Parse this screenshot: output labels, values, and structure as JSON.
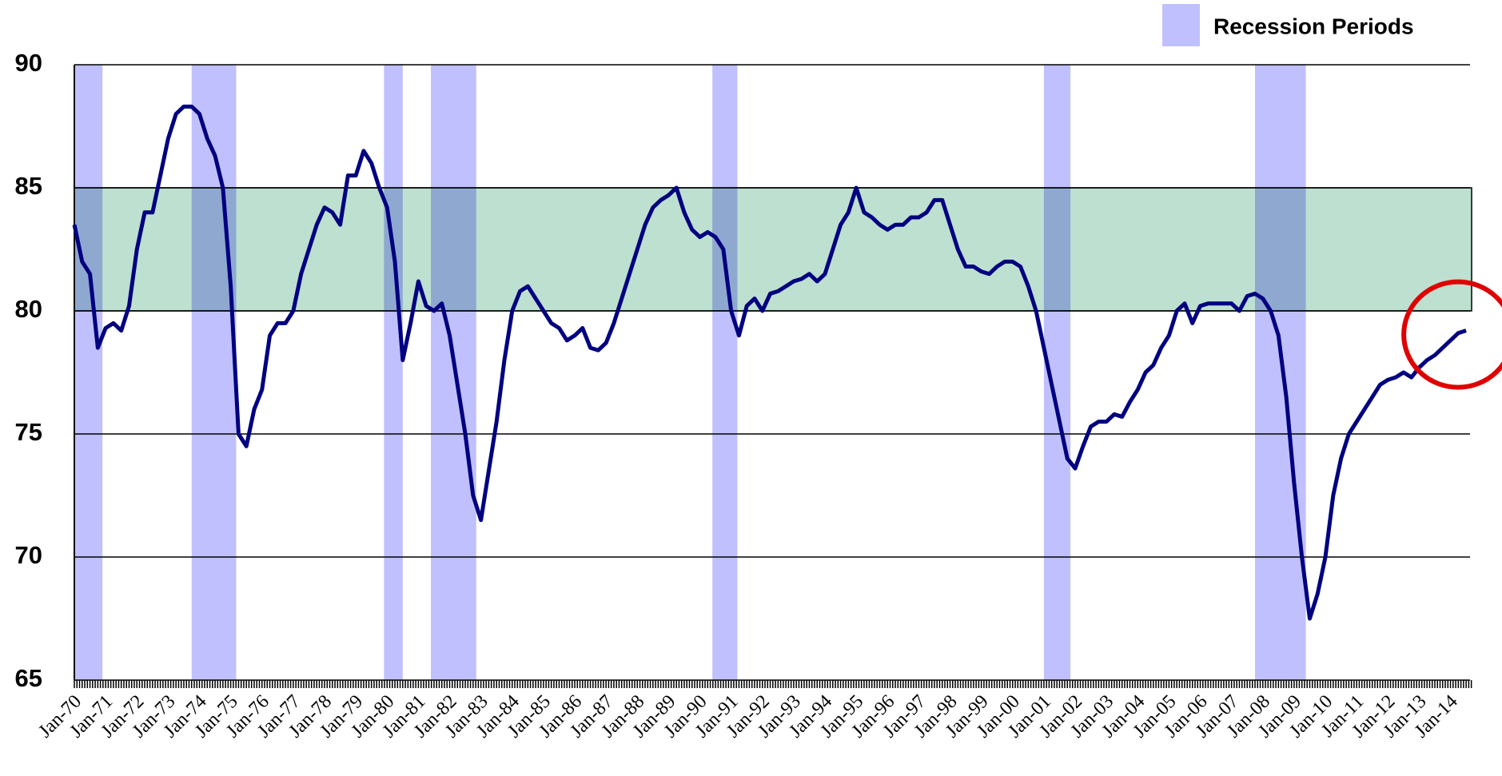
{
  "chart_data": {
    "type": "line",
    "categories": [
      "Jan-70",
      null,
      null,
      null,
      "Jan-71",
      null,
      null,
      null,
      "Jan-72",
      null,
      null,
      null,
      "Jan-73",
      null,
      null,
      null,
      "Jan-74",
      null,
      null,
      null,
      "Jan-75",
      null,
      null,
      null,
      "Jan-76",
      null,
      null,
      null,
      "Jan-77",
      null,
      null,
      null,
      "Jan-78",
      null,
      null,
      null,
      "Jan-79",
      null,
      null,
      null,
      "Jan-80",
      null,
      null,
      null,
      "Jan-81",
      null,
      null,
      null,
      "Jan-82",
      null,
      null,
      null,
      "Jan-83",
      null,
      null,
      null,
      "Jan-84",
      null,
      null,
      null,
      "Jan-85",
      null,
      null,
      null,
      "Jan-86",
      null,
      null,
      null,
      "Jan-87",
      null,
      null,
      null,
      "Jan-88",
      null,
      null,
      null,
      "Jan-89",
      null,
      null,
      null,
      "Jan-90",
      null,
      null,
      null,
      "Jan-91",
      null,
      null,
      null,
      "Jan-92",
      null,
      null,
      null,
      "Jan-93",
      null,
      null,
      null,
      "Jan-94",
      null,
      null,
      null,
      "Jan-95",
      null,
      null,
      null,
      "Jan-96",
      null,
      null,
      null,
      "Jan-97",
      null,
      null,
      null,
      "Jan-98",
      null,
      null,
      null,
      "Jan-99",
      null,
      null,
      null,
      "Jan-00",
      null,
      null,
      null,
      "Jan-01",
      null,
      null,
      null,
      "Jan-02",
      null,
      null,
      null,
      "Jan-03",
      null,
      null,
      null,
      "Jan-04",
      null,
      null,
      null,
      "Jan-05",
      null,
      null,
      null,
      "Jan-06",
      null,
      null,
      null,
      "Jan-07",
      null,
      null,
      null,
      "Jan-08",
      null,
      null,
      null,
      "Jan-09",
      null,
      null,
      null,
      "Jan-10",
      null,
      null,
      null,
      "Jan-11",
      null,
      null,
      null,
      "Jan-12",
      null,
      null,
      null,
      "Jan-13",
      null,
      null,
      null,
      "Jan-14",
      null,
      null
    ],
    "series": [
      {
        "color": "#000080",
        "values": [
          83.5,
          82.0,
          81.5,
          78.5,
          79.3,
          79.5,
          79.2,
          80.2,
          82.5,
          84.0,
          84.0,
          85.5,
          87.0,
          88.0,
          88.3,
          88.3,
          88.0,
          87.0,
          86.3,
          85.0,
          81.0,
          75.0,
          74.5,
          76.0,
          76.8,
          79.0,
          79.5,
          79.5,
          80.0,
          81.5,
          82.5,
          83.5,
          84.2,
          84.0,
          83.5,
          85.5,
          85.5,
          86.5,
          86.0,
          85.0,
          84.2,
          82.0,
          78.0,
          79.5,
          81.2,
          80.2,
          80.0,
          80.3,
          79.0,
          77.0,
          75.0,
          72.5,
          71.5,
          73.5,
          75.5,
          78.0,
          80.0,
          80.8,
          81.0,
          80.5,
          80.0,
          79.5,
          79.3,
          78.8,
          79.0,
          79.3,
          78.5,
          78.4,
          78.7,
          79.5,
          80.5,
          81.5,
          82.5,
          83.5,
          84.2,
          84.5,
          84.7,
          85.0,
          84.0,
          83.3,
          83.0,
          83.2,
          83.0,
          82.5,
          80.0,
          79.0,
          80.2,
          80.5,
          80.0,
          80.7,
          80.8,
          81.0,
          81.2,
          81.3,
          81.5,
          81.2,
          81.5,
          82.5,
          83.5,
          84.0,
          85.0,
          84.0,
          83.8,
          83.5,
          83.3,
          83.5,
          83.5,
          83.8,
          83.8,
          84.0,
          84.5,
          84.5,
          83.5,
          82.5,
          81.8,
          81.8,
          81.6,
          81.5,
          81.8,
          82.0,
          82.0,
          81.8,
          81.0,
          80.0,
          78.5,
          77.0,
          75.5,
          74.0,
          73.6,
          74.5,
          75.3,
          75.5,
          75.5,
          75.8,
          75.7,
          76.3,
          76.8,
          77.5,
          77.8,
          78.5,
          79.0,
          80.0,
          80.3,
          79.5,
          80.2,
          80.3,
          80.3,
          80.3,
          80.3,
          80.0,
          80.6,
          80.7,
          80.5,
          80.0,
          79.0,
          76.5,
          73.0,
          70.0,
          67.5,
          68.5,
          70.0,
          72.5,
          74.0,
          75.0,
          75.5,
          76.0,
          76.5,
          77.0,
          77.2,
          77.3,
          77.5,
          77.3,
          77.7,
          78.0,
          78.2,
          78.5,
          78.8,
          79.1,
          79.2
        ]
      }
    ],
    "recessions": {
      "name": "Recession Periods",
      "color": "#c0c0ff",
      "periods": [
        [
          0,
          3.6
        ],
        [
          15,
          20.7
        ],
        [
          39.6,
          42
        ],
        [
          45.6,
          51.4
        ],
        [
          81.6,
          84.8
        ],
        [
          124,
          127.4
        ],
        [
          151,
          157.5
        ]
      ]
    },
    "band": {
      "range": [
        80,
        85
      ],
      "color": "#bde0d0"
    },
    "ylim": [
      65,
      90
    ],
    "yticks": [
      65,
      70,
      75,
      80,
      85,
      90
    ],
    "grid": true
  }
}
